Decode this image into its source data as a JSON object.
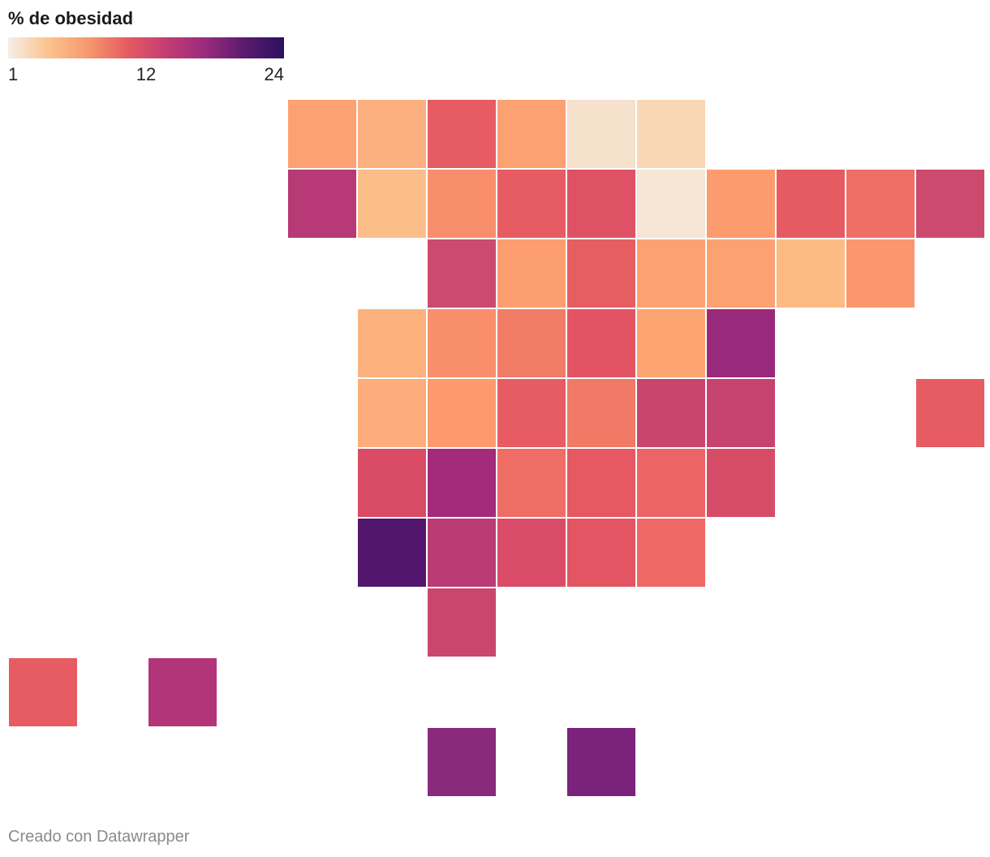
{
  "legend": {
    "title": "% de obesidad",
    "min_label": "1",
    "mid_label": "12",
    "max_label": "24",
    "gradient_colors": [
      "#f5eee8",
      "#fbc48e",
      "#f69a6e",
      "#e65c62",
      "#c43d72",
      "#9a2b7d",
      "#5a1b6e",
      "#2c1160"
    ]
  },
  "chart_data": {
    "type": "heatmap",
    "title": "% de obesidad",
    "scale": {
      "min": 1,
      "max": 24,
      "ticks": [
        1,
        12,
        24
      ]
    },
    "cells": [
      {
        "row": 0,
        "col": 4,
        "value": 6,
        "color": "#fca272"
      },
      {
        "row": 0,
        "col": 5,
        "value": 5,
        "color": "#fdb07f"
      },
      {
        "row": 0,
        "col": 6,
        "value": 11,
        "color": "#e65c62"
      },
      {
        "row": 0,
        "col": 7,
        "value": 6,
        "color": "#fca272"
      },
      {
        "row": 0,
        "col": 8,
        "value": 1,
        "color": "#f6e1cd"
      },
      {
        "row": 0,
        "col": 9,
        "value": 2,
        "color": "#fad7b4"
      },
      {
        "row": 1,
        "col": 4,
        "value": 16,
        "color": "#b73975"
      },
      {
        "row": 1,
        "col": 5,
        "value": 4,
        "color": "#fcbe88"
      },
      {
        "row": 1,
        "col": 6,
        "value": 7,
        "color": "#f98e6c"
      },
      {
        "row": 1,
        "col": 7,
        "value": 11,
        "color": "#e65c62"
      },
      {
        "row": 1,
        "col": 8,
        "value": 12,
        "color": "#df5266"
      },
      {
        "row": 1,
        "col": 9,
        "value": 1,
        "color": "#f5e6d6"
      },
      {
        "row": 1,
        "col": 10,
        "value": 6,
        "color": "#fc9c6e"
      },
      {
        "row": 1,
        "col": 11,
        "value": 11,
        "color": "#e65a62"
      },
      {
        "row": 1,
        "col": 12,
        "value": 9,
        "color": "#ef6e66"
      },
      {
        "row": 1,
        "col": 13,
        "value": 14,
        "color": "#cc4a6e"
      },
      {
        "row": 2,
        "col": 6,
        "value": 14,
        "color": "#cc4a6e"
      },
      {
        "row": 2,
        "col": 7,
        "value": 6,
        "color": "#fc9e70"
      },
      {
        "row": 2,
        "col": 8,
        "value": 11,
        "color": "#e65e62"
      },
      {
        "row": 2,
        "col": 9,
        "value": 6,
        "color": "#fca272"
      },
      {
        "row": 2,
        "col": 10,
        "value": 6,
        "color": "#fca272"
      },
      {
        "row": 2,
        "col": 11,
        "value": 4,
        "color": "#fdbb84"
      },
      {
        "row": 2,
        "col": 12,
        "value": 7,
        "color": "#fb976e"
      },
      {
        "row": 3,
        "col": 5,
        "value": 5,
        "color": "#fdb27e"
      },
      {
        "row": 3,
        "col": 6,
        "value": 7,
        "color": "#f98e6c"
      },
      {
        "row": 3,
        "col": 7,
        "value": 9,
        "color": "#f07c66"
      },
      {
        "row": 3,
        "col": 8,
        "value": 12,
        "color": "#e25464"
      },
      {
        "row": 3,
        "col": 9,
        "value": 6,
        "color": "#fca472"
      },
      {
        "row": 3,
        "col": 10,
        "value": 19,
        "color": "#992a7b"
      },
      {
        "row": 4,
        "col": 5,
        "value": 5,
        "color": "#fdac7c"
      },
      {
        "row": 4,
        "col": 6,
        "value": 6,
        "color": "#fc9a6e"
      },
      {
        "row": 4,
        "col": 7,
        "value": 11,
        "color": "#e65c62"
      },
      {
        "row": 4,
        "col": 8,
        "value": 9,
        "color": "#f07a66"
      },
      {
        "row": 4,
        "col": 9,
        "value": 14,
        "color": "#c9446e"
      },
      {
        "row": 4,
        "col": 10,
        "value": 14,
        "color": "#c7436f"
      },
      {
        "row": 4,
        "col": 13,
        "value": 11,
        "color": "#e65c62"
      },
      {
        "row": 5,
        "col": 5,
        "value": 12,
        "color": "#da4b66"
      },
      {
        "row": 5,
        "col": 6,
        "value": 18,
        "color": "#a32b7a"
      },
      {
        "row": 5,
        "col": 7,
        "value": 10,
        "color": "#ee6e66"
      },
      {
        "row": 5,
        "col": 8,
        "value": 11,
        "color": "#e65862"
      },
      {
        "row": 5,
        "col": 9,
        "value": 10,
        "color": "#ec6466"
      },
      {
        "row": 5,
        "col": 10,
        "value": 12,
        "color": "#d64c67"
      },
      {
        "row": 6,
        "col": 5,
        "value": 23,
        "color": "#52176c"
      },
      {
        "row": 6,
        "col": 6,
        "value": 15,
        "color": "#bb3c75"
      },
      {
        "row": 6,
        "col": 7,
        "value": 12,
        "color": "#da4c68"
      },
      {
        "row": 6,
        "col": 8,
        "value": 11,
        "color": "#e35562"
      },
      {
        "row": 6,
        "col": 9,
        "value": 10,
        "color": "#ee6866"
      },
      {
        "row": 7,
        "col": 6,
        "value": 13,
        "color": "#cb466c"
      },
      {
        "row": 8,
        "col": 0,
        "value": 11,
        "color": "#e65c62"
      },
      {
        "row": 8,
        "col": 2,
        "value": 16,
        "color": "#b2357a"
      },
      {
        "row": 9,
        "col": 6,
        "value": 19,
        "color": "#8a2a7c"
      },
      {
        "row": 9,
        "col": 8,
        "value": 20,
        "color": "#7a227c"
      }
    ]
  },
  "footer": {
    "credit": "Creado con Datawrapper"
  }
}
